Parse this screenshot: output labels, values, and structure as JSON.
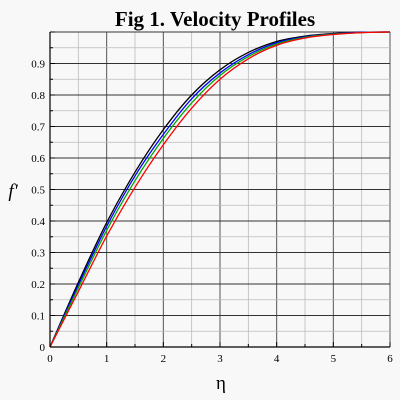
{
  "chart_data": {
    "type": "line",
    "title": "Fig 1.  Velocity Profiles",
    "xlabel": "η",
    "ylabel": "f'",
    "xlim": [
      0,
      6
    ],
    "ylim": [
      0,
      1
    ],
    "x_ticks": [
      "0",
      "1",
      "2",
      "3",
      "4",
      "5",
      "6"
    ],
    "y_ticks": [
      "0",
      "0.1",
      "0.2",
      "0.3",
      "0.4",
      "0.5",
      "0.6",
      "0.7",
      "0.8",
      "0.9"
    ],
    "grid": true,
    "series": [
      {
        "color": "#000000",
        "x": [
          0,
          0.5,
          1,
          1.5,
          2,
          2.5,
          3,
          3.5,
          4,
          4.5,
          5,
          5.5,
          6
        ],
        "values": [
          0,
          0.205,
          0.395,
          0.555,
          0.69,
          0.8,
          0.88,
          0.935,
          0.97,
          0.987,
          0.995,
          0.999,
          1.0
        ]
      },
      {
        "color": "#0000ff",
        "x": [
          0,
          0.5,
          1,
          1.5,
          2,
          2.5,
          3,
          3.5,
          4,
          4.5,
          5,
          5.5,
          6
        ],
        "values": [
          0,
          0.197,
          0.383,
          0.543,
          0.675,
          0.788,
          0.87,
          0.928,
          0.966,
          0.985,
          0.994,
          0.999,
          1.0
        ]
      },
      {
        "color": "#00aa00",
        "x": [
          0,
          0.5,
          1,
          1.5,
          2,
          2.5,
          3,
          3.5,
          4,
          4.5,
          5,
          5.5,
          6
        ],
        "values": [
          0,
          0.188,
          0.37,
          0.528,
          0.662,
          0.775,
          0.862,
          0.922,
          0.962,
          0.983,
          0.993,
          0.998,
          1.0
        ]
      },
      {
        "color": "#ff0000",
        "x": [
          0,
          0.5,
          1,
          1.5,
          2,
          2.5,
          3,
          3.5,
          4,
          4.5,
          5,
          5.5,
          6
        ],
        "values": [
          0,
          0.176,
          0.352,
          0.507,
          0.642,
          0.758,
          0.85,
          0.915,
          0.958,
          0.981,
          0.992,
          0.998,
          1.0
        ]
      }
    ]
  }
}
